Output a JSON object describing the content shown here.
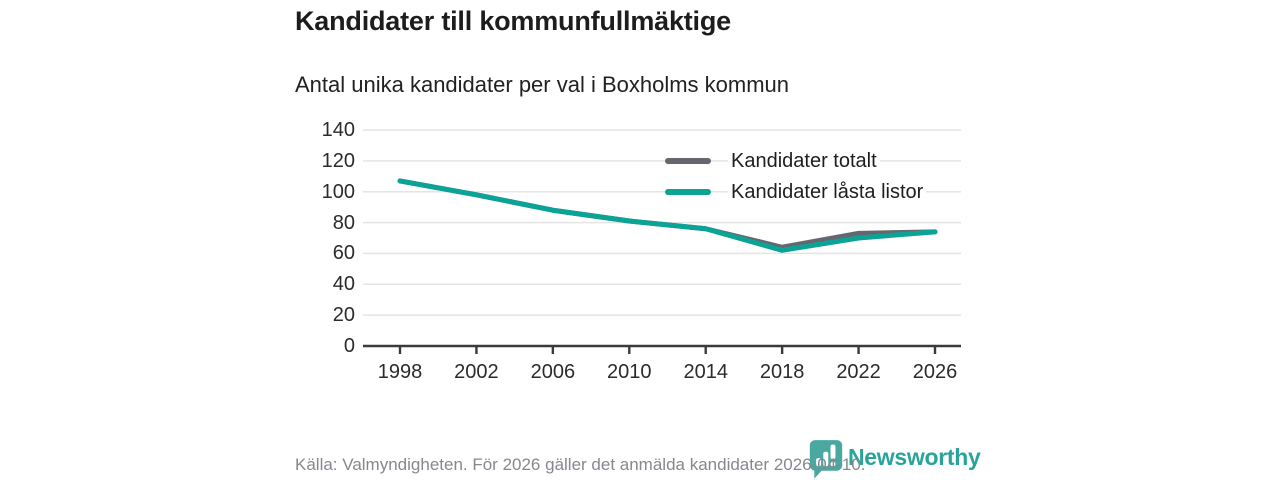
{
  "chart_data": {
    "type": "line",
    "title": "Kandidater till kommunfullmäktige",
    "subtitle": "Antal unika kandidater per val i Boxholms kommun",
    "categories": [
      1998,
      2002,
      2006,
      2010,
      2014,
      2018,
      2022,
      2026
    ],
    "series": [
      {
        "name": "Kandidater totalt",
        "color": "#66666e",
        "values": [
          107,
          98,
          88,
          81,
          76,
          64,
          73,
          74
        ]
      },
      {
        "name": "Kandidater låsta listor",
        "color": "#0aa396",
        "values": [
          107,
          98,
          88,
          81,
          76,
          62,
          70,
          74
        ]
      }
    ],
    "xlabel": "",
    "ylabel": "",
    "ylim": [
      0,
      140
    ],
    "yticks": [
      0,
      20,
      40,
      60,
      80,
      100,
      120,
      140
    ],
    "grid": true,
    "legend_position": "top-right"
  },
  "footer": {
    "source": "Källa: Valmyndigheten. För 2026 gäller det anmälda kandidater 2026-04-10.",
    "brand": "Newsworthy",
    "brand_color": "#2aa39a",
    "brand_icon_color": "#4aa8a1"
  },
  "colors": {
    "grid": "#e4e4e4",
    "axis": "#3a3a3a",
    "line_width": 5
  }
}
